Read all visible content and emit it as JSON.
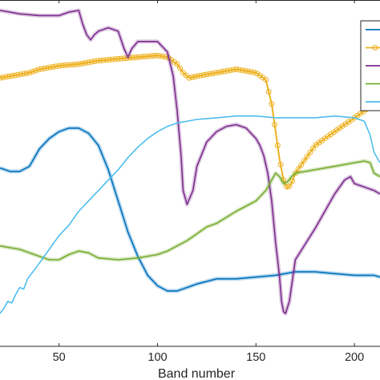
{
  "chart_data": {
    "type": "line",
    "title": "",
    "xlabel": "Band number",
    "ylabel": "",
    "xlim": [
      20,
      213
    ],
    "ylim": [
      0,
      1
    ],
    "x_ticks": [
      50,
      100,
      150,
      200
    ],
    "grid": false,
    "legend_position": "top-right",
    "series": [
      {
        "color": "#0072BD",
        "marker": "dot",
        "x": [
          20,
          25,
          30,
          35,
          40,
          45,
          50,
          55,
          60,
          65,
          70,
          75,
          80,
          85,
          90,
          95,
          100,
          105,
          110,
          115,
          120,
          130,
          140,
          150,
          160,
          170,
          180,
          190,
          200,
          210,
          213
        ],
        "y": [
          0.515,
          0.505,
          0.505,
          0.52,
          0.57,
          0.6,
          0.62,
          0.63,
          0.63,
          0.615,
          0.58,
          0.51,
          0.42,
          0.33,
          0.26,
          0.205,
          0.175,
          0.16,
          0.16,
          0.17,
          0.18,
          0.195,
          0.195,
          0.2,
          0.205,
          0.215,
          0.215,
          0.21,
          0.205,
          0.205,
          0.2
        ]
      },
      {
        "color": "#EDB120",
        "marker": "circle",
        "x": [
          20,
          25,
          30,
          35,
          40,
          50,
          60,
          70,
          80,
          90,
          100,
          105,
          110,
          113,
          116,
          120,
          130,
          140,
          150,
          155,
          158,
          160,
          162,
          164,
          166,
          168,
          170,
          175,
          180,
          185,
          190,
          195,
          200,
          205,
          210,
          213
        ],
        "y": [
          0.775,
          0.78,
          0.785,
          0.79,
          0.8,
          0.81,
          0.815,
          0.825,
          0.83,
          0.835,
          0.84,
          0.835,
          0.815,
          0.79,
          0.775,
          0.78,
          0.79,
          0.8,
          0.79,
          0.77,
          0.7,
          0.62,
          0.54,
          0.48,
          0.455,
          0.47,
          0.5,
          0.54,
          0.58,
          0.6,
          0.62,
          0.64,
          0.66,
          0.68,
          0.7,
          0.715
        ]
      },
      {
        "color": "#7E2F8E",
        "marker": "dot",
        "x": [
          20,
          25,
          30,
          40,
          50,
          55,
          60,
          62,
          64,
          66,
          68,
          70,
          75,
          80,
          83,
          85,
          87,
          90,
          100,
          105,
          108,
          110,
          112,
          113,
          115,
          118,
          120,
          125,
          130,
          135,
          140,
          145,
          150,
          152,
          154,
          156,
          158,
          160,
          162,
          163,
          164,
          165,
          167,
          170,
          180,
          190,
          195,
          198,
          200,
          205,
          210,
          213
        ],
        "y": [
          0.97,
          0.965,
          0.96,
          0.955,
          0.955,
          0.965,
          0.97,
          0.93,
          0.9,
          0.885,
          0.9,
          0.91,
          0.92,
          0.91,
          0.86,
          0.835,
          0.86,
          0.88,
          0.88,
          0.85,
          0.78,
          0.68,
          0.55,
          0.45,
          0.41,
          0.45,
          0.52,
          0.59,
          0.62,
          0.635,
          0.64,
          0.63,
          0.6,
          0.58,
          0.55,
          0.5,
          0.42,
          0.3,
          0.2,
          0.13,
          0.1,
          0.095,
          0.13,
          0.25,
          0.34,
          0.44,
          0.48,
          0.49,
          0.47,
          0.46,
          0.45,
          0.44
        ]
      },
      {
        "color": "#77AC30",
        "marker": "dot",
        "x": [
          20,
          25,
          30,
          35,
          40,
          45,
          50,
          55,
          60,
          65,
          70,
          80,
          90,
          100,
          105,
          110,
          115,
          120,
          125,
          130,
          140,
          150,
          155,
          158,
          160,
          162,
          164,
          166,
          168,
          170,
          180,
          190,
          200,
          205,
          208,
          210,
          213
        ],
        "y": [
          0.29,
          0.285,
          0.28,
          0.27,
          0.26,
          0.25,
          0.25,
          0.265,
          0.275,
          0.27,
          0.255,
          0.25,
          0.255,
          0.265,
          0.275,
          0.29,
          0.305,
          0.325,
          0.345,
          0.355,
          0.39,
          0.42,
          0.45,
          0.48,
          0.5,
          0.49,
          0.47,
          0.475,
          0.49,
          0.5,
          0.51,
          0.52,
          0.53,
          0.535,
          0.53,
          0.5,
          0.49
        ]
      },
      {
        "color": "#4DBEEE",
        "marker": "none",
        "x": [
          20,
          22,
          24,
          26,
          28,
          30,
          32,
          34,
          36,
          40,
          45,
          50,
          55,
          60,
          65,
          70,
          75,
          80,
          85,
          90,
          95,
          100,
          105,
          110,
          120,
          130,
          140,
          150,
          160,
          170,
          180,
          190,
          200,
          205,
          208,
          210,
          213
        ],
        "y": [
          0.095,
          0.11,
          0.13,
          0.125,
          0.15,
          0.17,
          0.165,
          0.195,
          0.21,
          0.24,
          0.28,
          0.32,
          0.35,
          0.39,
          0.42,
          0.45,
          0.48,
          0.51,
          0.545,
          0.575,
          0.6,
          0.62,
          0.635,
          0.645,
          0.655,
          0.66,
          0.665,
          0.665,
          0.66,
          0.66,
          0.66,
          0.665,
          0.66,
          0.65,
          0.61,
          0.56,
          0.53
        ]
      }
    ]
  }
}
